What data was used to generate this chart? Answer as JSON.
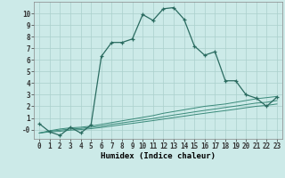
{
  "xlabel": "Humidex (Indice chaleur)",
  "background_color": "#cceae8",
  "grid_color": "#aad0cc",
  "line_color": "#2a6b60",
  "line_color2": "#3a8a7a",
  "x_main": [
    0,
    1,
    2,
    3,
    4,
    5,
    6,
    7,
    8,
    9,
    10,
    11,
    12,
    13,
    14,
    15,
    16,
    17,
    18,
    19,
    20,
    21,
    22,
    23
  ],
  "y_main": [
    0.5,
    -0.2,
    -0.5,
    0.2,
    -0.3,
    0.4,
    6.3,
    7.5,
    7.5,
    7.8,
    9.9,
    9.4,
    10.4,
    10.5,
    9.5,
    7.2,
    6.4,
    6.7,
    4.2,
    4.2,
    3.0,
    2.7,
    2.0,
    2.8
  ],
  "x_line1": [
    0,
    1,
    2,
    3,
    4,
    5,
    6,
    7,
    8,
    9,
    10,
    11,
    12,
    13,
    14,
    15,
    16,
    17,
    18,
    19,
    20,
    21,
    22,
    23
  ],
  "y_line1": [
    -0.3,
    -0.1,
    0.05,
    0.15,
    0.2,
    0.3,
    0.45,
    0.6,
    0.75,
    0.9,
    1.05,
    1.2,
    1.4,
    1.55,
    1.7,
    1.85,
    2.0,
    2.1,
    2.2,
    2.35,
    2.5,
    2.65,
    2.75,
    2.85
  ],
  "x_line2": [
    0,
    1,
    2,
    3,
    4,
    5,
    6,
    7,
    8,
    9,
    10,
    11,
    12,
    13,
    14,
    15,
    16,
    17,
    18,
    19,
    20,
    21,
    22,
    23
  ],
  "y_line2": [
    -0.3,
    -0.15,
    -0.05,
    0.05,
    0.1,
    0.2,
    0.3,
    0.45,
    0.57,
    0.7,
    0.82,
    0.95,
    1.1,
    1.25,
    1.38,
    1.52,
    1.65,
    1.77,
    1.9,
    2.02,
    2.15,
    2.28,
    2.35,
    2.5
  ],
  "x_line3": [
    0,
    1,
    2,
    3,
    4,
    5,
    6,
    7,
    8,
    9,
    10,
    11,
    12,
    13,
    14,
    15,
    16,
    17,
    18,
    19,
    20,
    21,
    22,
    23
  ],
  "y_line3": [
    -0.3,
    -0.2,
    -0.15,
    -0.05,
    0.0,
    0.08,
    0.18,
    0.3,
    0.42,
    0.53,
    0.65,
    0.77,
    0.9,
    1.03,
    1.15,
    1.28,
    1.4,
    1.52,
    1.63,
    1.75,
    1.88,
    2.0,
    2.08,
    2.2
  ],
  "xlim": [
    -0.5,
    23.5
  ],
  "ylim": [
    -0.8,
    11.0
  ],
  "yticks": [
    0,
    1,
    2,
    3,
    4,
    5,
    6,
    7,
    8,
    9,
    10
  ],
  "ytick_labels": [
    "-0",
    "1",
    "2",
    "3",
    "4",
    "5",
    "6",
    "7",
    "8",
    "9",
    "10"
  ],
  "xticks": [
    0,
    1,
    2,
    3,
    4,
    5,
    6,
    7,
    8,
    9,
    10,
    11,
    12,
    13,
    14,
    15,
    16,
    17,
    18,
    19,
    20,
    21,
    22,
    23
  ],
  "label_fontsize": 6.5,
  "tick_fontsize": 5.5
}
